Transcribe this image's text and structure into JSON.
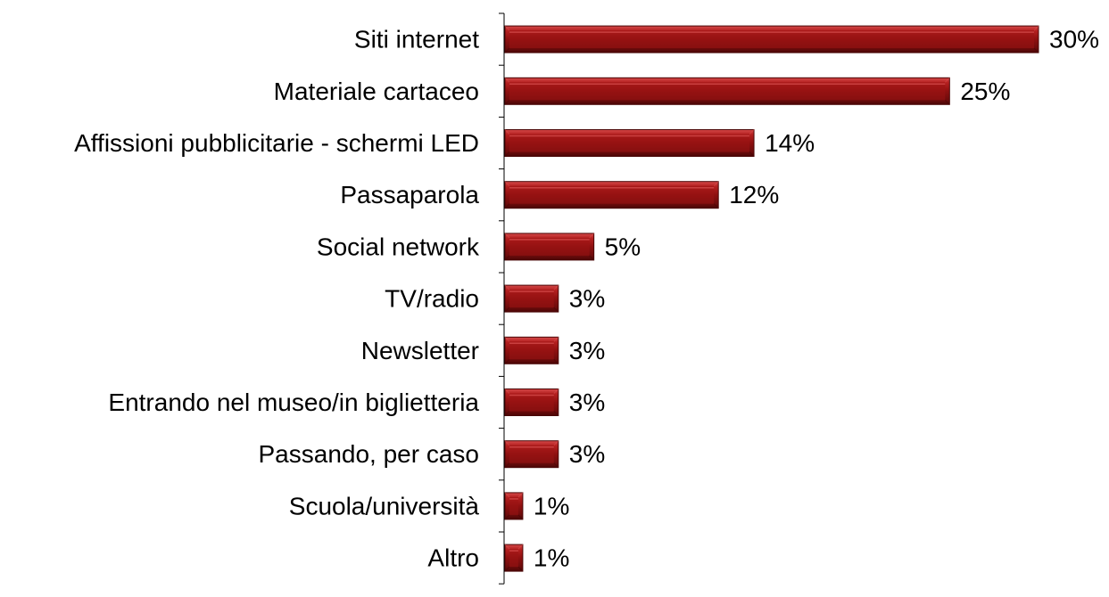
{
  "chart_data": {
    "type": "bar",
    "orientation": "horizontal",
    "categories": [
      "Siti internet",
      "Materiale cartaceo",
      "Affissioni pubblicitarie - schermi LED",
      "Passaparola",
      "Social network",
      "TV/radio",
      "Newsletter",
      "Entrando nel museo/in biglietteria",
      "Passando, per caso",
      "Scuola/università",
      "Altro"
    ],
    "values": [
      30,
      25,
      14,
      12,
      5,
      3,
      3,
      3,
      3,
      1,
      1
    ],
    "value_labels": [
      "30%",
      "25%",
      "14%",
      "12%",
      "5%",
      "3%",
      "3%",
      "3%",
      "3%",
      "1%",
      "1%"
    ],
    "title": "",
    "xlabel": "",
    "ylabel": "",
    "xlim": [
      0,
      30
    ],
    "grid": false,
    "legend": "none",
    "colors": {
      "bar_dark": "#6e0c0c",
      "bar_mid": "#9c1414",
      "bar_light": "#d44a4a",
      "bar_edge": "#4a0606",
      "axis": "#000000"
    }
  }
}
